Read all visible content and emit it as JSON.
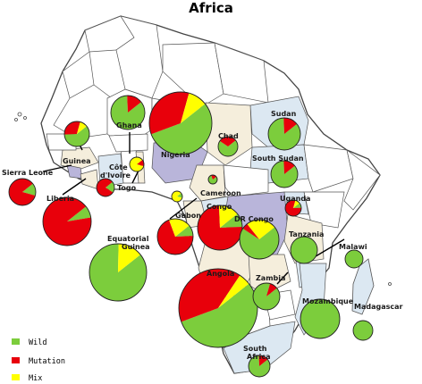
{
  "title": "Africa",
  "colors": {
    "wild": "#7ccd3c",
    "mutation": "#e8000b",
    "mix": "#ffff00",
    "land": "#ffffff",
    "border": "#555555",
    "ocean": "#ffffff",
    "highlight_blue": "#dce8f2",
    "highlight_purple": "#b9b5da",
    "highlight_beige": "#f5eedc"
  },
  "legend": [
    {
      "key": "wild",
      "label": "Wild"
    },
    {
      "key": "mutation",
      "label": "Mutation"
    },
    {
      "key": "mix",
      "label": "Mix"
    }
  ],
  "countries": [
    {
      "id": "guinea",
      "label": "Guinea",
      "wild": 0.6,
      "mutation": 0.3,
      "mix": 0.1
    },
    {
      "id": "sierra-leone",
      "label": "Sierra Leone",
      "wild": 0.15,
      "mutation": 0.85,
      "mix": 0.0
    },
    {
      "id": "liberia",
      "label": "Liberia",
      "wild": 0.08,
      "mutation": 0.92,
      "mix": 0.0
    },
    {
      "id": "cote-divoire",
      "label": "Côte d'Ivoire",
      "wild": 0.2,
      "mutation": 0.8,
      "mix": 0.0
    },
    {
      "id": "ghana",
      "label": "Ghana",
      "wild": 0.85,
      "mutation": 0.15,
      "mix": 0.0
    },
    {
      "id": "togo",
      "label": "Togo",
      "wild": 0.0,
      "mutation": 0.15,
      "mix": 0.85
    },
    {
      "id": "nigeria",
      "label": "Nigeria",
      "wild": 0.55,
      "mutation": 0.35,
      "mix": 0.1
    },
    {
      "id": "chad",
      "label": "Chad",
      "wild": 0.7,
      "mutation": 0.3,
      "mix": 0.0
    },
    {
      "id": "sudan",
      "label": "Sudan",
      "wild": 0.85,
      "mutation": 0.15,
      "mix": 0.0
    },
    {
      "id": "south-sudan",
      "label": "South Sudan",
      "wild": 0.85,
      "mutation": 0.15,
      "mix": 0.0
    },
    {
      "id": "cameroon",
      "label": "Cameroon",
      "wild": 0.8,
      "mutation": 0.2,
      "mix": 0.0
    },
    {
      "id": "gabon",
      "label": "Gabon",
      "wild": 0.1,
      "mutation": 0.7,
      "mix": 0.2
    },
    {
      "id": "equatorial-guinea",
      "label": "Equatorial Guinea",
      "wild": 0.15,
      "mutation": 0.0,
      "mix": 0.85
    },
    {
      "id": "congo",
      "label": "Congo",
      "wild": 0.1,
      "mutation": 0.75,
      "mix": 0.15
    },
    {
      "id": "dr-congo",
      "label": "DR Congo",
      "wild": 0.7,
      "mutation": 0.05,
      "mix": 0.25
    },
    {
      "id": "uganda",
      "label": "Uganda",
      "wild": 0.1,
      "mutation": 0.8,
      "mix": 0.1
    },
    {
      "id": "tanzania",
      "label": "Tanzania",
      "wild": 1.0,
      "mutation": 0.0,
      "mix": 0.0
    },
    {
      "id": "malawi",
      "label": "Malawi",
      "wild": 1.0,
      "mutation": 0.0,
      "mix": 0.0
    },
    {
      "id": "angola",
      "label": "Angola",
      "wild": 0.55,
      "mutation": 0.4,
      "mix": 0.05
    },
    {
      "id": "zambia",
      "label": "Zambia",
      "wild": 0.9,
      "mutation": 0.1,
      "mix": 0.0
    },
    {
      "id": "mozambique",
      "label": "Mozambique",
      "wild": 1.0,
      "mutation": 0.0,
      "mix": 0.0
    },
    {
      "id": "madagascar",
      "label": "Madagascar",
      "wild": 1.0,
      "mutation": 0.0,
      "mix": 0.0
    },
    {
      "id": "south-africa",
      "label": "South Africa",
      "wild": 0.85,
      "mutation": 0.15,
      "mix": 0.0
    },
    {
      "id": "western-pie",
      "label": "",
      "wild": 0.86,
      "mutation": 0.0,
      "mix": 0.14
    }
  ]
}
